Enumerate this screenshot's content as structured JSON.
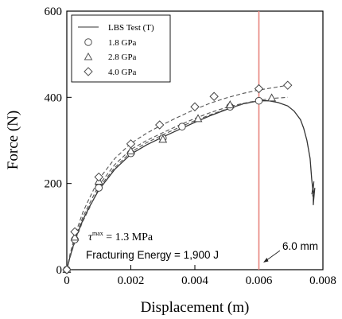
{
  "chart_data": {
    "type": "line",
    "title": "",
    "xlabel": "Displacement (m)",
    "ylabel": "Force (N)",
    "xlim": [
      0,
      0.008
    ],
    "ylim": [
      0,
      600
    ],
    "x_ticks": [
      0,
      0.002,
      0.004,
      0.006,
      0.008
    ],
    "x_tick_labels": [
      "0",
      "0.002",
      "0.004",
      "0.006",
      "0.008"
    ],
    "y_ticks": [
      0,
      200,
      400,
      600
    ],
    "y_tick_labels": [
      "0",
      "200",
      "400",
      "600"
    ],
    "grid": false,
    "legend_position": "top-left",
    "series": [
      {
        "name": "LBS Test (T)",
        "style": "solid",
        "marker": "none",
        "color": "#333333",
        "x": [
          0,
          0.0001,
          0.0002,
          0.0003,
          0.0005,
          0.0007,
          0.001,
          0.0015,
          0.002,
          0.0025,
          0.003,
          0.0035,
          0.004,
          0.0045,
          0.005,
          0.0055,
          0.006,
          0.0063,
          0.0066,
          0.0069,
          0.0071,
          0.0073,
          0.0074,
          0.0075,
          0.0076,
          0.00765,
          0.0077,
          0.0077
        ],
        "y": [
          0,
          30,
          55,
          78,
          115,
          145,
          185,
          233,
          268,
          290,
          308,
          325,
          342,
          358,
          372,
          385,
          392,
          392,
          388,
          380,
          368,
          348,
          328,
          300,
          258,
          210,
          175,
          150
        ]
      },
      {
        "name": "1.8 GPa",
        "style": "dashed",
        "marker": "circle",
        "color": "#555555",
        "x": [
          0,
          0.0001,
          0.0002,
          0.0003,
          0.0005,
          0.0007,
          0.001,
          0.0015,
          0.002,
          0.0025,
          0.003,
          0.0035,
          0.004,
          0.0045,
          0.005,
          0.0055,
          0.006
        ],
        "y": [
          0,
          28,
          52,
          75,
          112,
          142,
          190,
          237,
          273,
          295,
          313,
          330,
          346,
          360,
          373,
          384,
          392
        ],
        "markers_x": [
          0,
          0.00025,
          0.001,
          0.002,
          0.003,
          0.0036,
          0.0051,
          0.006
        ],
        "markers_y": [
          0,
          70,
          190,
          270,
          305,
          332,
          378,
          392
        ]
      },
      {
        "name": "2.8 GPa",
        "style": "dashed",
        "marker": "triangle",
        "color": "#555555",
        "x": [
          0,
          0.0001,
          0.0002,
          0.0003,
          0.0005,
          0.0007,
          0.001,
          0.0015,
          0.002,
          0.0025,
          0.003,
          0.0035,
          0.004,
          0.0045,
          0.005,
          0.0055,
          0.006,
          0.0065,
          0.0069
        ],
        "y": [
          0,
          32,
          58,
          82,
          122,
          152,
          196,
          244,
          279,
          300,
          318,
          335,
          351,
          365,
          377,
          386,
          393,
          398,
          400
        ],
        "markers_x": [
          0,
          0.00025,
          0.001,
          0.002,
          0.003,
          0.0041,
          0.0051,
          0.0064
        ],
        "markers_y": [
          0,
          75,
          205,
          275,
          302,
          350,
          382,
          398
        ]
      },
      {
        "name": "4.0 GPa",
        "style": "dashed",
        "marker": "diamond",
        "color": "#555555",
        "x": [
          0,
          0.0001,
          0.0002,
          0.0003,
          0.0005,
          0.0007,
          0.001,
          0.0015,
          0.002,
          0.0025,
          0.003,
          0.0035,
          0.004,
          0.0045,
          0.005,
          0.0055,
          0.006,
          0.0065,
          0.0069
        ],
        "y": [
          0,
          36,
          64,
          90,
          133,
          165,
          210,
          258,
          293,
          317,
          337,
          355,
          372,
          387,
          399,
          409,
          417,
          423,
          428
        ],
        "markers_x": [
          0,
          0.00025,
          0.001,
          0.002,
          0.0029,
          0.004,
          0.0046,
          0.006,
          0.0069
        ],
        "markers_y": [
          0,
          88,
          215,
          292,
          336,
          378,
          402,
          420,
          428
        ]
      }
    ],
    "reference_line": {
      "x": 0.006,
      "color": "#e8847e"
    },
    "annotations": {
      "tau_symbol": "τ",
      "tau_superscript": "max",
      "tau_value": " = 1.3 MPa",
      "fracturing_energy": "Fracturing Energy = 1,900 J",
      "arrow_label": "6.0 mm"
    }
  }
}
